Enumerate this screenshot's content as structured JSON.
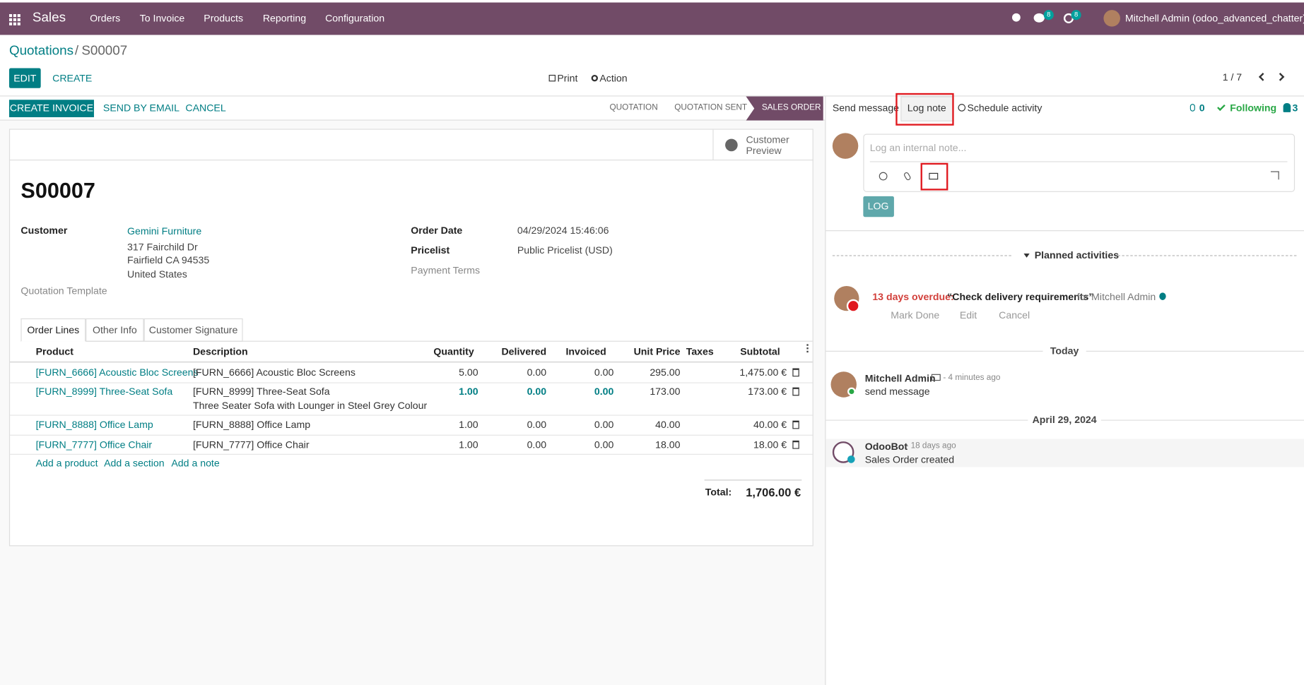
{
  "navbar": {
    "app": "Sales",
    "menu": [
      "Orders",
      "To Invoice",
      "Products",
      "Reporting",
      "Configuration"
    ],
    "message_count": "8",
    "activity_count": "8",
    "user": "Mitchell Admin (odoo_advanced_chatter)"
  },
  "breadcrumb": {
    "parent": "Quotations",
    "separator": "/",
    "current": "S00007"
  },
  "control_panel": {
    "edit": "EDIT",
    "create": "CREATE",
    "print": "Print",
    "action": "Action",
    "pager": "1 / 7"
  },
  "statusbar": {
    "buttons": [
      "CREATE INVOICE",
      "SEND BY EMAIL",
      "CANCEL"
    ],
    "stages": [
      "QUOTATION",
      "QUOTATION SENT",
      "SALES ORDER"
    ]
  },
  "form": {
    "customer_preview": "Customer Preview",
    "name": "S00007",
    "customer": {
      "label": "Customer",
      "lines": [
        "Gemini Furniture",
        "317 Fairchild Dr",
        "Fairfield CA 94535",
        "United States"
      ]
    },
    "quotation_template": "Quotation Template",
    "order_date": {
      "label": "Order Date",
      "value": "04/29/2024 15:46:06"
    },
    "pricelist": {
      "label": "Pricelist",
      "value": "Public Pricelist (USD)"
    },
    "payment_terms": "Payment Terms",
    "tabs": [
      "Order Lines",
      "Other Info",
      "Customer Signature"
    ]
  },
  "table": {
    "columns": [
      "Product",
      "Description",
      "Quantity",
      "Delivered",
      "Invoiced",
      "Unit Price",
      "Taxes",
      "Subtotal"
    ],
    "rows": [
      {
        "product": "[FURN_6666] Acoustic Bloc Screens",
        "description": [
          "[FURN_6666] Acoustic Bloc Screens"
        ],
        "quantity": "5.00",
        "delivered": "0.00",
        "invoiced": "0.00",
        "unit_price": "295.00",
        "subtotal": "1,475.00 €"
      },
      {
        "product": "[FURN_8999] Three-Seat Sofa",
        "description": [
          "[FURN_8999] Three-Seat Sofa",
          "Three Seater Sofa with Lounger in Steel Grey Colour"
        ],
        "quantity": "1.00",
        "delivered": "0.00",
        "invoiced": "0.00",
        "unit_price": "173.00",
        "subtotal": "173.00 €"
      },
      {
        "product": "[FURN_8888] Office Lamp",
        "description": [
          "[FURN_8888] Office Lamp"
        ],
        "quantity": "1.00",
        "delivered": "0.00",
        "invoiced": "0.00",
        "unit_price": "40.00",
        "subtotal": "40.00 €"
      },
      {
        "product": "[FURN_7777] Office Chair",
        "description": [
          "[FURN_7777] Office Chair"
        ],
        "quantity": "1.00",
        "delivered": "0.00",
        "invoiced": "0.00",
        "unit_price": "18.00",
        "subtotal": "18.00 €"
      }
    ],
    "add_links": [
      "Add a product",
      "Add a section",
      "Add a note"
    ],
    "total": {
      "label": "Total:",
      "value": "1,706.00 €"
    }
  },
  "chatter": {
    "tabs": [
      "Send message",
      "Log note",
      "Schedule activity"
    ],
    "attachments": "0",
    "following": "Following",
    "followers": "3",
    "composer": {
      "placeholder": "Log an internal note...",
      "log": "LOG"
    },
    "activities": {
      "header": "Planned activities",
      "overdue": "13 days overdue:",
      "summary": "“Check delivery requirements”",
      "assignee": "for Mitchell Admin",
      "actions": [
        "Mark Done",
        "Edit",
        "Cancel"
      ]
    },
    "separators": [
      "Today",
      "April 29, 2024"
    ],
    "messages": [
      {
        "author": "Mitchell Admin",
        "date": "- 4 minutes ago",
        "body": "send message"
      },
      {
        "author": "OdooBot",
        "date": "- 18 days ago",
        "body": "Sales Order created"
      }
    ]
  }
}
